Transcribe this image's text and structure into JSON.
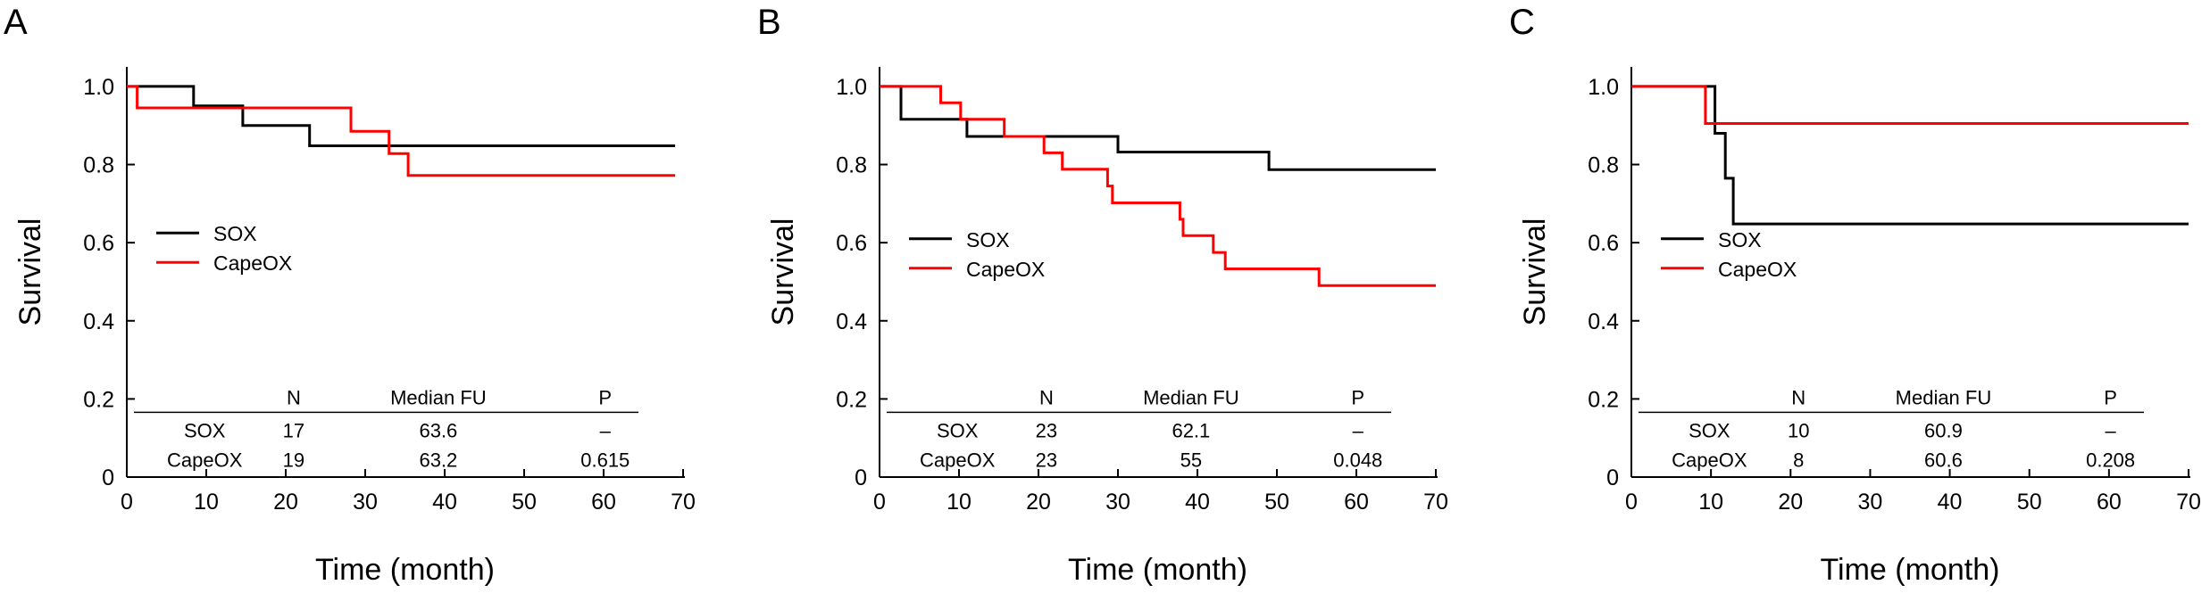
{
  "chart_data": [
    {
      "panel": "A",
      "type": "step",
      "xlabel": "Time (month)",
      "ylabel": "Survival",
      "xlim": [
        0,
        70
      ],
      "ylim": [
        0,
        1.05
      ],
      "xticks": [
        0,
        10,
        20,
        30,
        40,
        50,
        60,
        70
      ],
      "yticks": [
        0,
        0.2,
        0.4,
        0.6,
        0.8,
        1.0
      ],
      "ytick_labels": [
        "0",
        "0.2",
        "0.4",
        "0.6",
        "0.8",
        "1.0"
      ],
      "legend_position": "middle-left",
      "series": [
        {
          "name": "SOX",
          "color": "#000000",
          "points": [
            [
              0,
              1.0
            ],
            [
              8.4,
              1.0
            ],
            [
              8.4,
              0.95
            ],
            [
              14.6,
              0.95
            ],
            [
              14.6,
              0.9
            ],
            [
              23,
              0.9
            ],
            [
              23,
              0.848
            ],
            [
              69,
              0.848
            ]
          ]
        },
        {
          "name": "CapeOX",
          "color": "#ff0000",
          "points": [
            [
              0,
              1.0
            ],
            [
              1.3,
              1.0
            ],
            [
              1.3,
              0.945
            ],
            [
              28.2,
              0.945
            ],
            [
              28.2,
              0.885
            ],
            [
              33,
              0.885
            ],
            [
              33,
              0.828
            ],
            [
              35.4,
              0.828
            ],
            [
              35.4,
              0.772
            ],
            [
              69,
              0.772
            ]
          ]
        }
      ],
      "table": {
        "headers": [
          "",
          "N",
          "Median FU",
          "P"
        ],
        "rows": [
          [
            "SOX",
            "17",
            "63.6",
            "–"
          ],
          [
            "CapeOX",
            "19",
            "63.2",
            "0.615"
          ]
        ]
      }
    },
    {
      "panel": "B",
      "type": "step",
      "xlabel": "Time (month)",
      "ylabel": "Survival",
      "xlim": [
        0,
        70
      ],
      "ylim": [
        0,
        1.05
      ],
      "xticks": [
        0,
        10,
        20,
        30,
        40,
        50,
        60,
        70
      ],
      "yticks": [
        0,
        0.2,
        0.4,
        0.6,
        0.8,
        1.0
      ],
      "ytick_labels": [
        "0",
        "0.2",
        "0.4",
        "0.6",
        "0.8",
        "1.0"
      ],
      "legend_position": "lower-left",
      "series": [
        {
          "name": "SOX",
          "color": "#000000",
          "points": [
            [
              0,
              1.0
            ],
            [
              2.7,
              1.0
            ],
            [
              2.7,
              0.916
            ],
            [
              11,
              0.916
            ],
            [
              11,
              0.872
            ],
            [
              30,
              0.872
            ],
            [
              30,
              0.832
            ],
            [
              49,
              0.832
            ],
            [
              49,
              0.787
            ],
            [
              70,
              0.787
            ]
          ]
        },
        {
          "name": "CapeOX",
          "color": "#ff0000",
          "points": [
            [
              0,
              1.0
            ],
            [
              7.7,
              1.0
            ],
            [
              7.7,
              0.958
            ],
            [
              10.2,
              0.958
            ],
            [
              10.2,
              0.916
            ],
            [
              15.7,
              0.916
            ],
            [
              15.7,
              0.872
            ],
            [
              20.7,
              0.872
            ],
            [
              20.7,
              0.83
            ],
            [
              23,
              0.83
            ],
            [
              23,
              0.788
            ],
            [
              28.7,
              0.788
            ],
            [
              28.7,
              0.745
            ],
            [
              29.3,
              0.745
            ],
            [
              29.3,
              0.702
            ],
            [
              37.8,
              0.702
            ],
            [
              37.8,
              0.66
            ],
            [
              38.2,
              0.66
            ],
            [
              38.2,
              0.618
            ],
            [
              42,
              0.618
            ],
            [
              42,
              0.575
            ],
            [
              43.5,
              0.575
            ],
            [
              43.5,
              0.533
            ],
            [
              55.3,
              0.533
            ],
            [
              55.3,
              0.49
            ],
            [
              70,
              0.49
            ]
          ]
        }
      ],
      "table": {
        "headers": [
          "",
          "N",
          "Median FU",
          "P"
        ],
        "rows": [
          [
            "SOX",
            "23",
            "62.1",
            "–"
          ],
          [
            "CapeOX",
            "23",
            "55",
            "0.048"
          ]
        ]
      }
    },
    {
      "panel": "C",
      "type": "step",
      "xlabel": "Time (month)",
      "ylabel": "Survival",
      "xlim": [
        0,
        70
      ],
      "ylim": [
        0,
        1.05
      ],
      "xticks": [
        0,
        10,
        20,
        30,
        40,
        50,
        60,
        70
      ],
      "yticks": [
        0,
        0.2,
        0.4,
        0.6,
        0.8,
        1.0
      ],
      "ytick_labels": [
        "0",
        "0.2",
        "0.4",
        "0.6",
        "0.8",
        "1.0"
      ],
      "legend_position": "lower-left",
      "series": [
        {
          "name": "SOX",
          "color": "#000000",
          "points": [
            [
              0,
              1.0
            ],
            [
              10.5,
              1.0
            ],
            [
              10.5,
              0.88
            ],
            [
              11.8,
              0.88
            ],
            [
              11.8,
              0.765
            ],
            [
              12.8,
              0.765
            ],
            [
              12.8,
              0.648
            ],
            [
              70,
              0.648
            ]
          ]
        },
        {
          "name": "CapeOX",
          "color": "#ff0000",
          "points": [
            [
              0,
              1.0
            ],
            [
              9.3,
              1.0
            ],
            [
              9.3,
              0.905
            ],
            [
              70,
              0.905
            ]
          ]
        }
      ],
      "table": {
        "headers": [
          "",
          "N",
          "Median FU",
          "P"
        ],
        "rows": [
          [
            "SOX",
            "10",
            "60.9",
            "–"
          ],
          [
            "CapeOX",
            "8",
            "60.6",
            "0.208"
          ]
        ]
      }
    }
  ]
}
